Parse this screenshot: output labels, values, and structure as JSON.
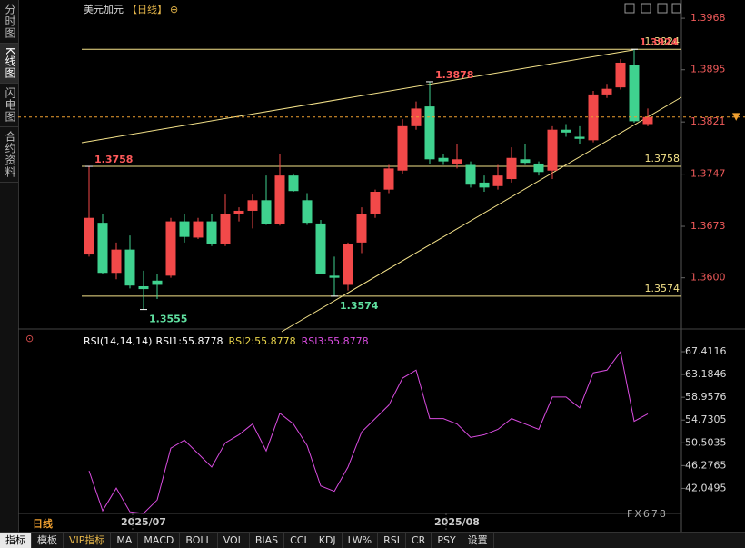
{
  "chart_data": [
    {
      "type": "candlestick",
      "title": "美元加元",
      "period": "【日线】",
      "add_icon": "⊕",
      "categories": [
        null,
        null,
        null,
        null,
        "2025/07",
        null,
        null,
        null,
        null,
        null,
        null,
        null,
        null,
        null,
        null,
        null,
        null,
        null,
        null,
        null,
        null,
        null,
        null,
        null,
        null,
        null,
        null,
        "2025/08",
        null,
        null,
        null,
        null,
        null,
        null,
        null,
        null,
        null,
        null,
        null,
        null,
        null,
        null
      ],
      "open": [
        1.3633,
        1.3678,
        1.3607,
        1.364,
        1.3588,
        1.3596,
        1.3603,
        1.368,
        1.3657,
        1.368,
        1.3648,
        1.369,
        1.3695,
        1.371,
        1.3676,
        1.3745,
        1.371,
        1.3677,
        1.3603,
        1.359,
        1.365,
        1.369,
        1.3725,
        1.3752,
        1.3815,
        1.3843,
        1.377,
        1.3762,
        1.376,
        1.3735,
        1.373,
        1.374,
        1.3768,
        1.3762,
        1.3752,
        1.381,
        1.38,
        1.3795,
        1.386,
        1.387,
        1.3902,
        1.3818
      ],
      "high": [
        1.3758,
        1.369,
        1.365,
        1.366,
        1.361,
        1.3605,
        1.3685,
        1.369,
        1.3685,
        1.369,
        1.3718,
        1.37,
        1.3718,
        1.3745,
        1.3775,
        1.3748,
        1.372,
        1.3682,
        1.363,
        1.365,
        1.37,
        1.3725,
        1.376,
        1.3825,
        1.385,
        1.3878,
        1.3775,
        1.379,
        1.3765,
        1.3745,
        1.376,
        1.3785,
        1.379,
        1.3765,
        1.3815,
        1.3818,
        1.3815,
        1.3865,
        1.3875,
        1.391,
        1.3924,
        1.384
      ],
      "low": [
        1.363,
        1.3605,
        1.3598,
        1.3585,
        1.3555,
        1.357,
        1.36,
        1.365,
        1.3655,
        1.3645,
        1.3645,
        1.368,
        1.367,
        1.3675,
        1.3674,
        1.3722,
        1.3675,
        1.3605,
        1.3574,
        1.3582,
        1.3635,
        1.3685,
        1.372,
        1.3748,
        1.381,
        1.3762,
        1.376,
        1.3755,
        1.3728,
        1.3722,
        1.3725,
        1.3735,
        1.376,
        1.3745,
        1.374,
        1.38,
        1.379,
        1.3792,
        1.3855,
        1.3867,
        1.382,
        1.3815
      ],
      "close": [
        1.3685,
        1.3607,
        1.364,
        1.3589,
        1.3584,
        1.359,
        1.368,
        1.3658,
        1.368,
        1.3648,
        1.369,
        1.3695,
        1.371,
        1.3676,
        1.3745,
        1.3723,
        1.3678,
        1.3605,
        1.36,
        1.3648,
        1.369,
        1.3722,
        1.3755,
        1.3815,
        1.384,
        1.3768,
        1.3765,
        1.3768,
        1.3732,
        1.3728,
        1.3745,
        1.377,
        1.3763,
        1.375,
        1.381,
        1.3806,
        1.3797,
        1.386,
        1.3868,
        1.3905,
        1.3822,
        1.3828
      ],
      "up_color": "#f24949",
      "down_color": "#3fd28f",
      "ylim": [
        1.353,
        1.3981
      ],
      "yticks": [
        1.3968,
        1.3895,
        1.3821,
        1.3747,
        1.3673,
        {
          "value": 1.36,
          "label": "1.3600"
        }
      ],
      "levels": [
        1.3924,
        1.3758,
        1.3574
      ],
      "level_color": "#f5e38a",
      "annotations": [
        {
          "index": 40,
          "at": "high",
          "label": "1.3924",
          "color": "#ff5a5a"
        },
        {
          "index": 25,
          "at": "high",
          "label": "1.3878",
          "color": "#ff5a5a"
        },
        {
          "index": 0,
          "at": "high",
          "label": "1.3758",
          "color": "#ff5a5a"
        },
        {
          "index": 4,
          "at": "low",
          "label": "1.3555",
          "color": "#5fe0a0"
        },
        {
          "index": 18,
          "at": "low",
          "label": "1.3574",
          "color": "#5fe0a0"
        }
      ]
    },
    {
      "type": "line",
      "legend": [
        "RSI(14,14,14)",
        "RSI1:55.8778",
        "RSI2:55.8778",
        "RSI3:55.8778"
      ],
      "legend_colors": [
        "#ffffff",
        "#ffffff",
        "#e8d44a",
        "#d94ce0"
      ],
      "series": [
        {
          "name": "RSI3",
          "color": "#d94ce0",
          "values": [
            45.3,
            37.9,
            42.1,
            37.7,
            37.4,
            39.9,
            49.5,
            51.0,
            48.5,
            46.0,
            50.5,
            52.0,
            54.0,
            49.0,
            56.0,
            54.0,
            50.0,
            42.5,
            41.5,
            46.0,
            52.5,
            55.0,
            57.5,
            62.5,
            64.0,
            55.0,
            55.0,
            54.0,
            51.5,
            52.0,
            53.0,
            55.0,
            54.0,
            53.0,
            59.0,
            59.0,
            57.0,
            63.5,
            64.0,
            67.4,
            54.5,
            55.8778
          ]
        }
      ],
      "ylim": [
        34.87,
        70.28
      ],
      "yticks": [
        67.4116,
        63.1846,
        58.9576,
        54.7305,
        50.5035,
        46.2765,
        42.0495
      ]
    }
  ],
  "sidebar": [
    "分时图",
    "K线图",
    "闪电图",
    "合约资料"
  ],
  "period_label": "日线",
  "toolbar": [
    "指标",
    "模板",
    "VIP指标",
    "MA",
    "MACD",
    "BOLL",
    "VOL",
    "BIAS",
    "CCI",
    "KDJ",
    "LW%",
    "RSI",
    "CR",
    "PSY",
    "设置"
  ],
  "watermark": "FX678"
}
